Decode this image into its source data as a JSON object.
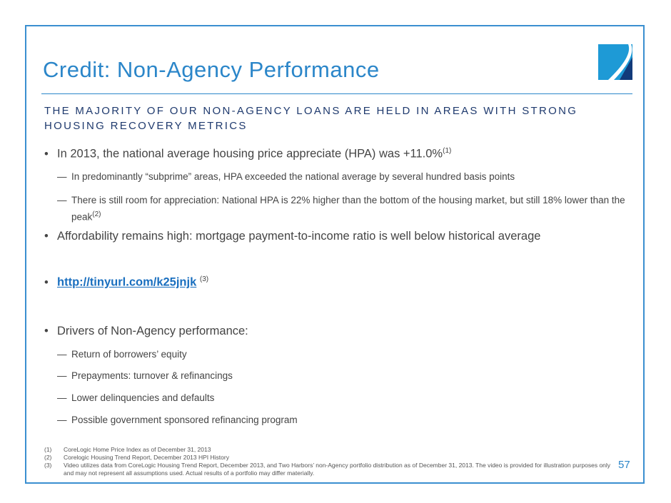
{
  "title": "Credit: Non-Agency Performance",
  "subtitle": "THE MAJORITY OF OUR NON-AGENCY LOANS ARE HELD IN AREAS WITH STRONG HOUSING RECOVERY METRICS",
  "bullets": [
    {
      "text": "In 2013, the national average housing price appreciate (HPA) was +11.0%",
      "sup": "(1)"
    },
    {
      "text": "Affordability remains high: mortgage payment-to-income ratio is well below historical average"
    },
    {
      "link": "http://tinyurl.com/k25jnjk",
      "sup": "(3)"
    },
    {
      "text": "Drivers of Non-Agency performance:"
    }
  ],
  "sub1": [
    {
      "text": "In predominantly “subprime” areas, HPA exceeded the national average by several hundred basis points"
    },
    {
      "text": "There is still room for appreciation: National HPA is 22% higher than the bottom of the housing market, but still 18% lower than the peak",
      "sup": "(2)"
    }
  ],
  "sub2": [
    "Return of borrowers’ equity",
    "Prepayments: turnover & refinancings",
    "Lower delinquencies and defaults",
    "Possible government sponsored refinancing program"
  ],
  "footnotes": [
    {
      "n": "(1)",
      "t": "CoreLogic Home Price Index as of December 31, 2013"
    },
    {
      "n": "(2)",
      "t": "Corelogic Housing Trend Report, December 2013 HPI History"
    },
    {
      "n": "(3)",
      "t": "Video utilizes data from CoreLogic Housing Trend Report, December 2013, and Two Harbors’ non-Agency portfolio distribution as of December 31, 2013. The video is provided for illustration purposes only and may not represent all assumptions used. Actual results of a portfolio may differ materially."
    }
  ],
  "page_number": "57",
  "bullet_char": "•",
  "dash_char": "—"
}
